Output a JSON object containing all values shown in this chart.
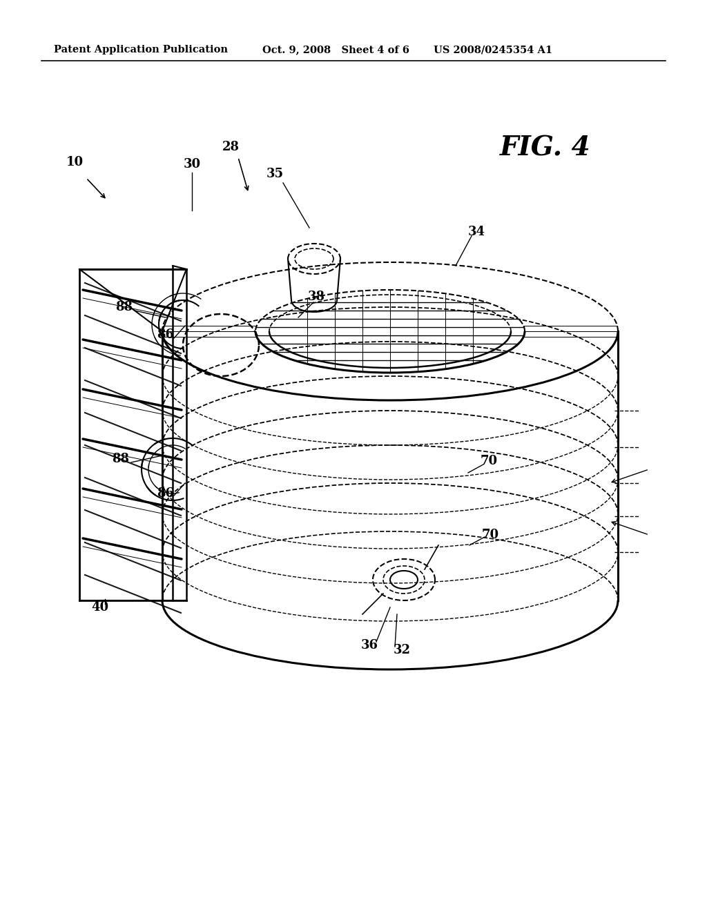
{
  "background_color": "#ffffff",
  "header_left": "Patent Application Publication",
  "header_mid": "Oct. 9, 2008   Sheet 4 of 6",
  "header_right": "US 2008/0245354 A1",
  "fig_label": "FIG. 4"
}
